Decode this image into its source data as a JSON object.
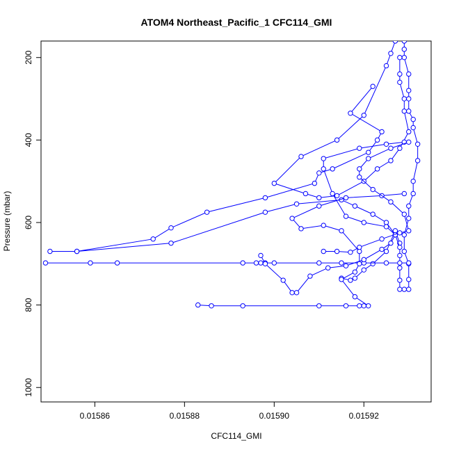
{
  "chart_data": {
    "type": "line",
    "title": "ATOM4 Northeast_Pacific_1 CFC114_GMI",
    "xlabel": "CFC114_GMI",
    "ylabel": "Pressure (mbar)",
    "xlim": [
      0.015848,
      0.015935
    ],
    "ylim": [
      1035,
      160
    ],
    "y_reversed": true,
    "x_ticks": [
      0.01586,
      0.01588,
      0.0159,
      0.01592
    ],
    "x_tick_labels": [
      "0.01586",
      "0.01588",
      "0.01590",
      "0.01592"
    ],
    "y_ticks": [
      200,
      400,
      600,
      800,
      1000
    ],
    "y_tick_labels": [
      "200",
      "400",
      "600",
      "800",
      "1000"
    ],
    "grid": false,
    "series": [
      {
        "color": "#0000ff",
        "marker": "open-circle",
        "points": [
          [
            0.015929,
            160
          ],
          [
            0.015929,
            180
          ],
          [
            0.015929,
            200
          ],
          [
            0.01593,
            240
          ],
          [
            0.01593,
            280
          ],
          [
            0.01593,
            300
          ],
          [
            0.01593,
            330
          ],
          [
            0.015931,
            350
          ],
          [
            0.015931,
            370
          ],
          [
            0.015932,
            410
          ],
          [
            0.015932,
            450
          ],
          [
            0.015931,
            500
          ],
          [
            0.015931,
            530
          ],
          [
            0.01593,
            560
          ],
          [
            0.01593,
            590
          ],
          [
            0.015929,
            630
          ],
          [
            0.015929,
            670
          ],
          [
            0.01593,
            700
          ],
          [
            0.01593,
            738
          ],
          [
            0.01593,
            762
          ],
          [
            0.015929,
            762
          ],
          [
            0.015928,
            762
          ],
          [
            0.015928,
            740
          ],
          [
            0.015928,
            710
          ],
          [
            0.015928,
            680
          ],
          [
            0.015928,
            650
          ],
          [
            0.015927,
            620
          ],
          [
            0.015925,
            670
          ],
          [
            0.015922,
            700
          ],
          [
            0.01592,
            715
          ],
          [
            0.015918,
            735
          ],
          [
            0.015917,
            740
          ],
          [
            0.015915,
            735
          ]
        ]
      },
      {
        "color": "#0000ff",
        "marker": "open-circle",
        "points": [
          [
            0.015927,
            160
          ],
          [
            0.015926,
            190
          ],
          [
            0.015925,
            220
          ],
          [
            0.01592,
            340
          ],
          [
            0.015914,
            400
          ],
          [
            0.015906,
            440
          ],
          [
            0.0159,
            505
          ],
          [
            0.015907,
            530
          ],
          [
            0.01591,
            540
          ],
          [
            0.015914,
            535
          ],
          [
            0.01592,
            500
          ],
          [
            0.015923,
            470
          ],
          [
            0.015926,
            450
          ],
          [
            0.015928,
            420
          ],
          [
            0.01593,
            380
          ],
          [
            0.015929,
            330
          ],
          [
            0.015929,
            300
          ],
          [
            0.015928,
            260
          ],
          [
            0.015928,
            240
          ],
          [
            0.015928,
            200
          ]
        ]
      },
      {
        "color": "#0000ff",
        "marker": "open-circle",
        "points": [
          [
            0.015922,
            270
          ],
          [
            0.015917,
            335
          ],
          [
            0.015924,
            380
          ],
          [
            0.015923,
            400
          ],
          [
            0.015921,
            430
          ],
          [
            0.015913,
            470
          ],
          [
            0.01591,
            480
          ],
          [
            0.015909,
            505
          ],
          [
            0.015898,
            540
          ],
          [
            0.015885,
            575
          ],
          [
            0.015877,
            613
          ],
          [
            0.015873,
            640
          ],
          [
            0.015856,
            670
          ],
          [
            0.01585,
            670
          ],
          [
            0.015856,
            670
          ],
          [
            0.015877,
            650
          ],
          [
            0.015898,
            575
          ],
          [
            0.015905,
            555
          ],
          [
            0.015915,
            545
          ],
          [
            0.015918,
            560
          ],
          [
            0.015922,
            580
          ],
          [
            0.015925,
            600
          ],
          [
            0.015927,
            630
          ],
          [
            0.015928,
            660
          ]
        ]
      },
      {
        "color": "#0000ff",
        "marker": "open-circle",
        "points": [
          [
            0.015849,
            698
          ],
          [
            0.015859,
            698
          ],
          [
            0.015865,
            698
          ],
          [
            0.015893,
            698
          ],
          [
            0.015896,
            698
          ],
          [
            0.015897,
            698
          ],
          [
            0.015898,
            698
          ],
          [
            0.0159,
            698
          ],
          [
            0.01591,
            698
          ],
          [
            0.015915,
            698
          ],
          [
            0.01592,
            698
          ],
          [
            0.015925,
            698
          ],
          [
            0.015928,
            698
          ],
          [
            0.01593,
            698
          ]
        ]
      },
      {
        "color": "#0000ff",
        "marker": "open-circle",
        "points": [
          [
            0.015897,
            680
          ],
          [
            0.015898,
            700
          ],
          [
            0.015902,
            740
          ],
          [
            0.015904,
            770
          ],
          [
            0.015905,
            770
          ],
          [
            0.015908,
            730
          ],
          [
            0.015912,
            710
          ],
          [
            0.015916,
            705
          ],
          [
            0.01592,
            690
          ],
          [
            0.015924,
            665
          ],
          [
            0.015926,
            650
          ],
          [
            0.015927,
            630
          ],
          [
            0.015925,
            610
          ],
          [
            0.01592,
            600
          ],
          [
            0.015916,
            585
          ],
          [
            0.015913,
            530
          ],
          [
            0.015911,
            470
          ],
          [
            0.015911,
            445
          ],
          [
            0.015919,
            420
          ],
          [
            0.015925,
            410
          ],
          [
            0.015929,
            405
          ]
        ]
      },
      {
        "color": "#0000ff",
        "marker": "open-circle",
        "points": [
          [
            0.015883,
            800
          ],
          [
            0.015886,
            802
          ],
          [
            0.015893,
            802
          ],
          [
            0.01591,
            802
          ],
          [
            0.015916,
            802
          ],
          [
            0.015919,
            802
          ],
          [
            0.01592,
            802
          ],
          [
            0.015921,
            802
          ],
          [
            0.015918,
            780
          ],
          [
            0.015915,
            738
          ],
          [
            0.015918,
            720
          ],
          [
            0.015919,
            700
          ],
          [
            0.015919,
            670
          ],
          [
            0.015915,
            620
          ],
          [
            0.015911,
            607
          ],
          [
            0.015906,
            615
          ],
          [
            0.015904,
            590
          ],
          [
            0.01591,
            560
          ],
          [
            0.015916,
            540
          ],
          [
            0.015924,
            535
          ],
          [
            0.015929,
            530
          ]
        ]
      },
      {
        "color": "#0000ff",
        "marker": "open-circle",
        "points": [
          [
            0.015911,
            670
          ],
          [
            0.015914,
            670
          ],
          [
            0.015917,
            672
          ],
          [
            0.015919,
            660
          ],
          [
            0.015924,
            640
          ],
          [
            0.015928,
            625
          ],
          [
            0.01593,
            620
          ],
          [
            0.015929,
            580
          ],
          [
            0.015926,
            550
          ],
          [
            0.015922,
            520
          ],
          [
            0.015919,
            490
          ],
          [
            0.015919,
            470
          ],
          [
            0.015921,
            445
          ],
          [
            0.015926,
            420
          ],
          [
            0.01593,
            405
          ]
        ]
      }
    ]
  }
}
